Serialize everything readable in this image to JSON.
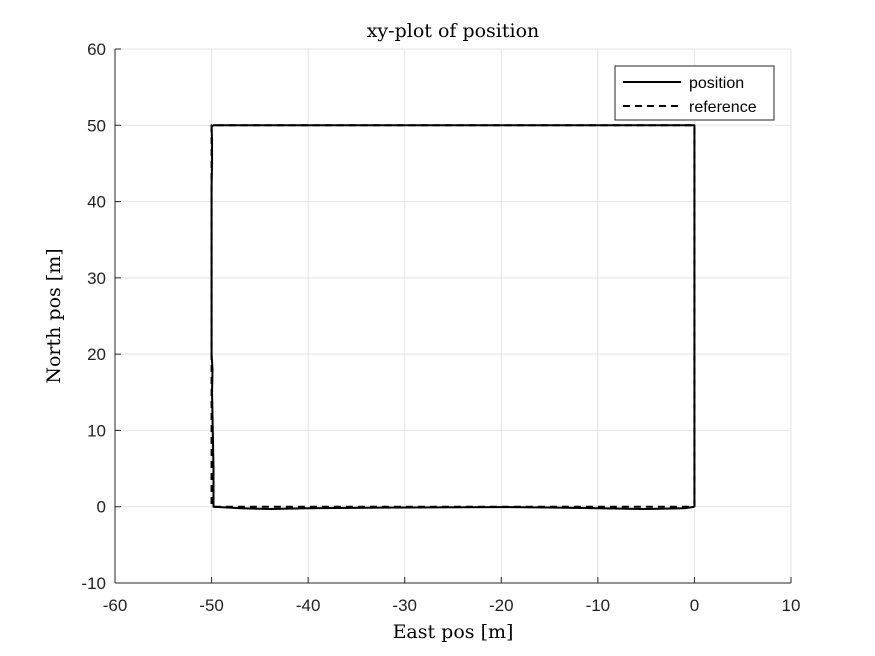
{
  "chart_data": {
    "type": "line",
    "title": "xy-plot of position",
    "xlabel": "East pos [m]",
    "ylabel": "North pos [m]",
    "xlim": [
      -60,
      10
    ],
    "ylim": [
      -10,
      60
    ],
    "xticks": [
      -60,
      -50,
      -40,
      -30,
      -20,
      -10,
      0,
      10
    ],
    "yticks": [
      -10,
      0,
      10,
      20,
      30,
      40,
      50,
      60
    ],
    "xtick_labels": [
      "-60",
      "-50",
      "-40",
      "-30",
      "-20",
      "-10",
      "0",
      "10"
    ],
    "ytick_labels": [
      "-10",
      "0",
      "10",
      "20",
      "30",
      "40",
      "50",
      "60"
    ],
    "grid": true,
    "legend_position": "top-right",
    "series": [
      {
        "name": "position",
        "style": "solid",
        "color": "#000000",
        "x": [
          0,
          0,
          -10,
          -20,
          -30,
          -40,
          -49.8,
          -50,
          -49.95,
          -49.95,
          -50,
          -50,
          -50,
          -50,
          -49.9,
          -49.95,
          -49.8,
          -49.8,
          -47,
          -44,
          -40,
          -30,
          -20,
          -15,
          -10,
          -5,
          -1,
          0
        ],
        "y": [
          0,
          50,
          50,
          50,
          50,
          50,
          50,
          49.8,
          48,
          45,
          42,
          38,
          30,
          20,
          18,
          15,
          5,
          0,
          -0.2,
          -0.3,
          -0.2,
          -0.1,
          -0.05,
          -0.1,
          -0.2,
          -0.3,
          -0.2,
          0
        ]
      },
      {
        "name": "reference",
        "style": "dashed",
        "color": "#000000",
        "x": [
          0,
          0,
          -50,
          -50,
          0
        ],
        "y": [
          0,
          50,
          50,
          0,
          0
        ]
      }
    ]
  }
}
